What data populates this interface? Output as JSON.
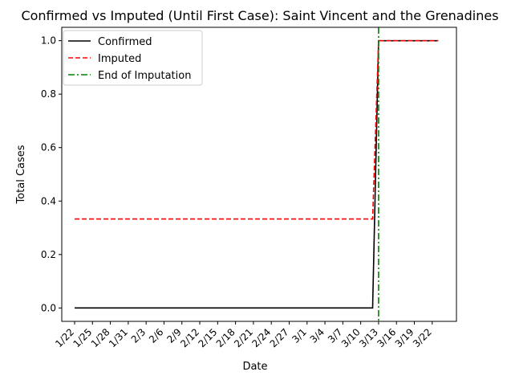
{
  "chart_data": {
    "type": "line",
    "title": "Confirmed vs Imputed (Until First Case): Saint Vincent and the Grenadines",
    "xlabel": "Date",
    "ylabel": "Total Cases",
    "x": [
      "1/22",
      "1/23",
      "1/24",
      "1/25",
      "1/26",
      "1/27",
      "1/28",
      "1/29",
      "1/30",
      "1/31",
      "2/1",
      "2/2",
      "2/3",
      "2/4",
      "2/5",
      "2/6",
      "2/7",
      "2/8",
      "2/9",
      "2/10",
      "2/11",
      "2/12",
      "2/13",
      "2/14",
      "2/15",
      "2/16",
      "2/17",
      "2/18",
      "2/19",
      "2/20",
      "2/21",
      "2/22",
      "2/23",
      "2/24",
      "2/25",
      "2/26",
      "2/27",
      "2/28",
      "2/29",
      "3/1",
      "3/2",
      "3/3",
      "3/4",
      "3/5",
      "3/6",
      "3/7",
      "3/8",
      "3/9",
      "3/10",
      "3/11",
      "3/12",
      "3/13",
      "3/14",
      "3/15",
      "3/16",
      "3/17",
      "3/18",
      "3/19",
      "3/20",
      "3/21",
      "3/22",
      "3/23"
    ],
    "xticks": [
      "1/22",
      "1/25",
      "1/28",
      "1/31",
      "2/3",
      "2/6",
      "2/9",
      "2/12",
      "2/15",
      "2/18",
      "2/21",
      "2/24",
      "2/27",
      "3/1",
      "3/4",
      "3/7",
      "3/10",
      "3/13",
      "3/16",
      "3/19",
      "3/22"
    ],
    "series": [
      {
        "name": "Confirmed",
        "color": "#000000",
        "dash": "solid",
        "values": [
          0,
          0,
          0,
          0,
          0,
          0,
          0,
          0,
          0,
          0,
          0,
          0,
          0,
          0,
          0,
          0,
          0,
          0,
          0,
          0,
          0,
          0,
          0,
          0,
          0,
          0,
          0,
          0,
          0,
          0,
          0,
          0,
          0,
          0,
          0,
          0,
          0,
          0,
          0,
          0,
          0,
          0,
          0,
          0,
          0,
          0,
          0,
          0,
          0,
          0,
          0,
          1,
          1,
          1,
          1,
          1,
          1,
          1,
          1,
          1,
          1,
          1
        ]
      },
      {
        "name": "Imputed",
        "color": "#ff0000",
        "dash": "dashed",
        "values": [
          0.333,
          0.333,
          0.333,
          0.333,
          0.333,
          0.333,
          0.333,
          0.333,
          0.333,
          0.333,
          0.333,
          0.333,
          0.333,
          0.333,
          0.333,
          0.333,
          0.333,
          0.333,
          0.333,
          0.333,
          0.333,
          0.333,
          0.333,
          0.333,
          0.333,
          0.333,
          0.333,
          0.333,
          0.333,
          0.333,
          0.333,
          0.333,
          0.333,
          0.333,
          0.333,
          0.333,
          0.333,
          0.333,
          0.333,
          0.333,
          0.333,
          0.333,
          0.333,
          0.333,
          0.333,
          0.333,
          0.333,
          0.333,
          0.333,
          0.333,
          0.333,
          1,
          1,
          1,
          1,
          1,
          1,
          1,
          1,
          1,
          1,
          1
        ]
      }
    ],
    "vline": {
      "name": "End of Imputation",
      "color": "#008000",
      "dash": "dashdot",
      "x": "3/13"
    },
    "ylim": [
      -0.05,
      1.05
    ],
    "yticks": [
      0.0,
      0.2,
      0.4,
      0.6,
      0.8,
      1.0
    ],
    "grid": false,
    "legend": "upper-left"
  }
}
